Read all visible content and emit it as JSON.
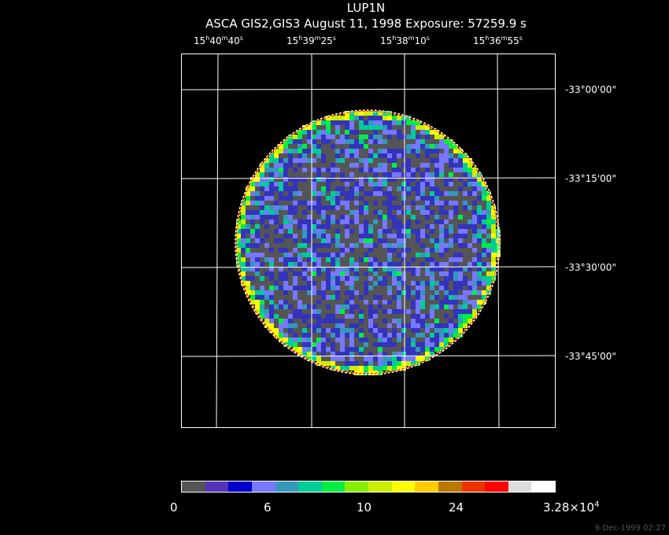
{
  "title": "LUP1N",
  "subtitle": "ASCA GIS2,GIS3 August 11, 1998 Exposure: 57259.9 s",
  "ra_labels": [
    {
      "h": "15",
      "m": "40",
      "s": "40"
    },
    {
      "h": "15",
      "m": "39",
      "s": "25"
    },
    {
      "h": "15",
      "m": "38",
      "s": "10"
    },
    {
      "h": "15",
      "m": "36",
      "s": "55"
    }
  ],
  "dec_labels": [
    "-33°00'00\"",
    "-33°15'00\"",
    "-33°30'00\"",
    "-33°45'00\""
  ],
  "colorbar": {
    "colors": [
      "#555555",
      "#5533bb",
      "#0000cc",
      "#7777ff",
      "#3399bb",
      "#00cc99",
      "#00ee44",
      "#88ee00",
      "#ccee00",
      "#ffff00",
      "#ffcc00",
      "#bb7700",
      "#ee3300",
      "#ff0000",
      "#dddddd",
      "#ffffff"
    ],
    "tick_labels": [
      "0",
      "6",
      "10",
      "24"
    ],
    "max_label_mantissa": "3.28×10",
    "max_label_exponent": "4"
  },
  "map_palette": [
    "#555555",
    "#3333bb",
    "#7777ff",
    "#3399bb",
    "#00cc99",
    "#00ee44",
    "#ccee00",
    "#ffff00"
  ],
  "rim_colors": [
    "#ffff00",
    "#ff0000",
    "#ffffff"
  ],
  "date_stamp": "9-Dec-1999 02:27"
}
